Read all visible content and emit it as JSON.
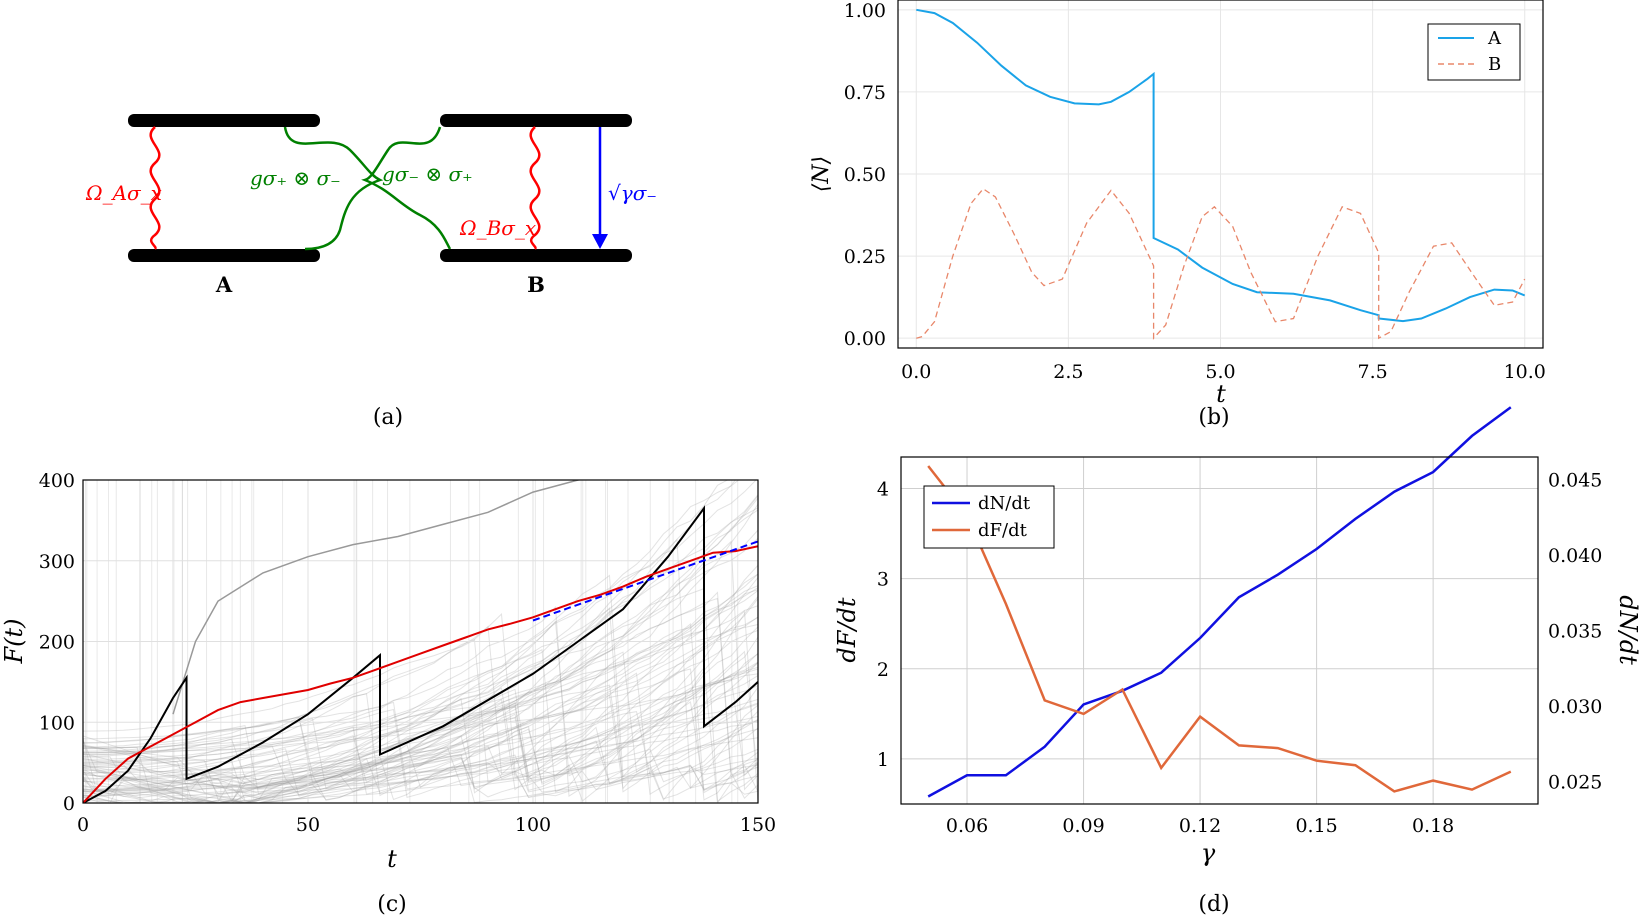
{
  "panels": {
    "a": {
      "caption": "(a)",
      "label_A": "A",
      "label_B": "B",
      "drive_A": "Ω_Aσ_x",
      "drive_B": "Ω_Bσ_x",
      "coupling_left": "gσ₊ ⊗ σ₋",
      "coupling_right": "gσ₋ ⊗ σ₊",
      "decay": "√γσ₋",
      "colors": {
        "drive": "#ff0000",
        "coupling": "#008000",
        "decay": "#0000ff",
        "level": "#000000"
      }
    },
    "b": {
      "caption": "(b)"
    },
    "c": {
      "caption": "(c)"
    },
    "d": {
      "caption": "(d)"
    }
  },
  "chart_data": [
    {
      "id": "b",
      "type": "line",
      "xlabel": "t",
      "ylabel": "⟨N⟩",
      "xlim": [
        -0.3,
        10.3
      ],
      "ylim": [
        -0.03,
        1.03
      ],
      "xticks": [
        0.0,
        2.5,
        5.0,
        7.5,
        10.0
      ],
      "xtick_labels": [
        "0.0",
        "2.5",
        "5.0",
        "7.5",
        "10.0"
      ],
      "yticks": [
        0.0,
        0.25,
        0.5,
        0.75,
        1.0
      ],
      "ytick_labels": [
        "0.00",
        "0.25",
        "0.50",
        "0.75",
        "1.00"
      ],
      "grid": true,
      "legend": "top-right",
      "series": [
        {
          "name": "A",
          "color": "#1aa3e8",
          "dash": "solid",
          "x": [
            0,
            0.3,
            0.6,
            1.0,
            1.4,
            1.8,
            2.2,
            2.6,
            3.0,
            3.2,
            3.5,
            3.8,
            3.9,
            3.9,
            4.3,
            4.7,
            5.2,
            5.6,
            6.2,
            6.8,
            7.3,
            7.6,
            7.6,
            8.0,
            8.3,
            8.7,
            9.1,
            9.5,
            9.8,
            10.0
          ],
          "y": [
            1.0,
            0.99,
            0.96,
            0.9,
            0.83,
            0.77,
            0.735,
            0.715,
            0.712,
            0.72,
            0.75,
            0.79,
            0.805,
            0.305,
            0.27,
            0.215,
            0.165,
            0.14,
            0.135,
            0.115,
            0.085,
            0.07,
            0.06,
            0.052,
            0.06,
            0.09,
            0.125,
            0.148,
            0.145,
            0.13
          ]
        },
        {
          "name": "B",
          "color": "#e8876a",
          "dash": "dashed",
          "x": [
            0,
            0.1,
            0.3,
            0.6,
            0.9,
            1.1,
            1.3,
            1.6,
            1.9,
            2.1,
            2.4,
            2.8,
            3.2,
            3.5,
            3.8,
            3.9,
            3.9,
            4.1,
            4.4,
            4.7,
            4.9,
            5.2,
            5.5,
            5.9,
            6.2,
            6.6,
            7.0,
            7.3,
            7.6,
            7.6,
            7.8,
            8.1,
            8.5,
            8.8,
            9.2,
            9.5,
            9.8,
            10.0
          ],
          "y": [
            0.0,
            0.005,
            0.05,
            0.25,
            0.41,
            0.455,
            0.43,
            0.32,
            0.2,
            0.16,
            0.18,
            0.35,
            0.45,
            0.38,
            0.26,
            0.22,
            0.0,
            0.04,
            0.22,
            0.37,
            0.4,
            0.34,
            0.2,
            0.05,
            0.06,
            0.25,
            0.4,
            0.38,
            0.26,
            0.0,
            0.02,
            0.14,
            0.28,
            0.29,
            0.18,
            0.1,
            0.11,
            0.18
          ]
        }
      ]
    },
    {
      "id": "c",
      "type": "line",
      "xlabel": "t",
      "ylabel": "F(t)",
      "xlim": [
        0,
        150
      ],
      "ylim": [
        0,
        400
      ],
      "xticks": [
        0,
        50,
        100,
        150
      ],
      "yticks": [
        0,
        100,
        200,
        300,
        400
      ],
      "grid": true,
      "series": [
        {
          "role": "mean",
          "color": "#e00000",
          "x": [
            0,
            5,
            10,
            15,
            20,
            25,
            30,
            35,
            40,
            45,
            50,
            55,
            60,
            65,
            70,
            75,
            80,
            85,
            90,
            95,
            100,
            105,
            110,
            115,
            120,
            125,
            130,
            135,
            140,
            145,
            150
          ],
          "y": [
            0,
            30,
            55,
            70,
            85,
            100,
            115,
            125,
            130,
            135,
            140,
            148,
            155,
            165,
            175,
            185,
            195,
            205,
            215,
            222,
            230,
            240,
            250,
            258,
            268,
            280,
            290,
            300,
            310,
            312,
            318
          ]
        },
        {
          "role": "fit",
          "color": "#0000ff",
          "dash": "dashed",
          "x": [
            100,
            150
          ],
          "y": [
            226,
            324
          ]
        },
        {
          "role": "trajectory",
          "color": "#000000",
          "x": [
            0,
            5,
            10,
            15,
            20,
            23,
            23,
            30,
            40,
            50,
            60,
            66,
            66,
            80,
            100,
            110,
            120,
            130,
            138,
            138,
            145,
            150
          ],
          "y": [
            0,
            15,
            40,
            80,
            130,
            155,
            30,
            45,
            75,
            110,
            155,
            183,
            60,
            95,
            160,
            200,
            240,
            305,
            365,
            95,
            125,
            150
          ]
        },
        {
          "role": "trajectory",
          "color": "#999999",
          "x": [
            20,
            25,
            30,
            40,
            50,
            60,
            70,
            80,
            90,
            100,
            110,
            120,
            130,
            140
          ],
          "y": [
            110,
            200,
            250,
            285,
            305,
            320,
            330,
            345,
            360,
            385,
            400,
            410,
            420,
            430
          ]
        }
      ]
    },
    {
      "id": "d",
      "type": "line",
      "xlabel": "γ",
      "ylabel": "dF/dt",
      "ylabel_right": "dN/dt",
      "xlim": [
        0.043,
        0.207
      ],
      "ylim": [
        0.5,
        4.35
      ],
      "ylim_right": [
        0.0235,
        0.0465
      ],
      "xticks": [
        0.06,
        0.09,
        0.12,
        0.15,
        0.18
      ],
      "yticks": [
        1,
        2,
        3,
        4
      ],
      "yticks_right": [
        0.025,
        0.03,
        0.035,
        0.04,
        0.045
      ],
      "ytick_labels_right": [
        "0.025",
        "0.030",
        "0.035",
        "0.040",
        "0.045"
      ],
      "grid": true,
      "legend": "top-left",
      "x": [
        0.05,
        0.06,
        0.07,
        0.08,
        0.09,
        0.1,
        0.11,
        0.12,
        0.13,
        0.14,
        0.15,
        0.16,
        0.17,
        0.18,
        0.19,
        0.2
      ],
      "series": [
        {
          "name": "dN/dt",
          "color": "#1010e0",
          "axis": "right",
          "values": [
            0.024,
            0.0254,
            0.0254,
            0.0273,
            0.0301,
            0.031,
            0.0322,
            0.0345,
            0.0372,
            0.0387,
            0.0404,
            0.0424,
            0.0442,
            0.0455,
            0.0479,
            0.0498
          ]
        },
        {
          "name": "dF/dt",
          "color": "#e0683a",
          "axis": "left",
          "values": [
            4.25,
            3.7,
            2.72,
            1.65,
            1.5,
            1.77,
            0.9,
            1.47,
            1.15,
            1.12,
            0.98,
            0.93,
            0.64,
            0.76,
            0.66,
            0.86
          ]
        }
      ]
    }
  ]
}
